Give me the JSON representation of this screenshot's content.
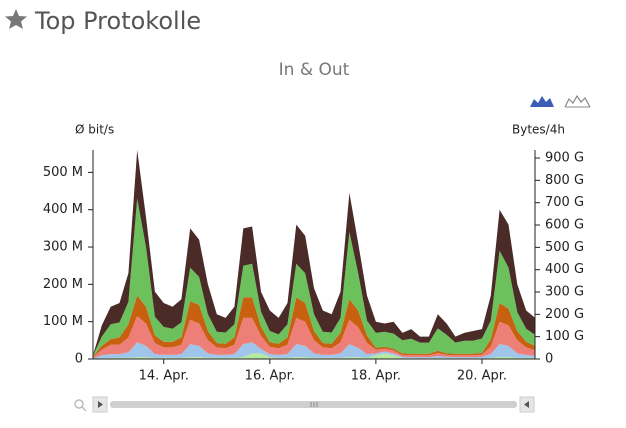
{
  "header": {
    "title": "Top Protokolle"
  },
  "chart_data": {
    "type": "area",
    "stacked": true,
    "title": "In & Out",
    "ylabel": "Ø bit/s",
    "y2label": "Bytes/4h",
    "categories": [
      null,
      null,
      null,
      null,
      null,
      null,
      null,
      null,
      "14. Apr.",
      null,
      null,
      null,
      null,
      null,
      null,
      null,
      null,
      null,
      null,
      null,
      "16. Apr.",
      null,
      null,
      null,
      null,
      null,
      null,
      null,
      null,
      null,
      null,
      null,
      "18. Apr.",
      null,
      null,
      null,
      null,
      null,
      null,
      null,
      null,
      null,
      null,
      null,
      "20. Apr.",
      null,
      null,
      null,
      null,
      null,
      null
    ],
    "ylim": [
      0,
      560
    ],
    "yticks": [
      0,
      {
        "value": 100,
        "label": "100 M"
      },
      {
        "value": 200,
        "label": "200 M"
      },
      {
        "value": 300,
        "label": "300 M"
      },
      {
        "value": 400,
        "label": "400 M"
      },
      {
        "value": 500,
        "label": "500 M"
      }
    ],
    "y2lim": [
      0,
      936
    ],
    "y2ticks": [
      0,
      {
        "value": 100,
        "label": "100 G"
      },
      {
        "value": 200,
        "label": "200 G"
      },
      {
        "value": 300,
        "label": "300 G"
      },
      {
        "value": 400,
        "label": "400 G"
      },
      {
        "value": 500,
        "label": "500 G"
      },
      {
        "value": 600,
        "label": "600 G"
      },
      {
        "value": 700,
        "label": "700 G"
      },
      {
        "value": 800,
        "label": "800 G"
      },
      {
        "value": 900,
        "label": "900 G"
      }
    ],
    "series": [
      {
        "color": "#b6eaa2",
        "values": [
          0,
          2,
          3,
          3,
          3,
          5,
          5,
          3,
          3,
          3,
          3,
          5,
          5,
          3,
          3,
          3,
          3,
          5,
          15,
          15,
          5,
          3,
          3,
          5,
          5,
          3,
          3,
          3,
          3,
          5,
          5,
          3,
          10,
          15,
          10,
          3,
          2,
          2,
          2,
          3,
          2,
          2,
          2,
          2,
          2,
          3,
          5,
          5,
          3,
          3,
          3
        ]
      },
      {
        "color": "#9fc6ea",
        "values": [
          2,
          8,
          10,
          10,
          15,
          40,
          30,
          10,
          8,
          8,
          10,
          35,
          30,
          12,
          8,
          8,
          10,
          35,
          30,
          12,
          8,
          8,
          10,
          35,
          30,
          12,
          8,
          8,
          12,
          35,
          25,
          10,
          5,
          5,
          5,
          3,
          3,
          3,
          3,
          5,
          4,
          3,
          3,
          3,
          4,
          10,
          35,
          30,
          12,
          8,
          5
        ]
      },
      {
        "color": "#ee7f78",
        "values": [
          3,
          15,
          25,
          25,
          40,
          70,
          60,
          30,
          20,
          20,
          25,
          65,
          60,
          35,
          20,
          18,
          25,
          70,
          65,
          35,
          20,
          18,
          25,
          70,
          65,
          35,
          20,
          18,
          30,
          65,
          55,
          30,
          10,
          8,
          8,
          5,
          5,
          5,
          5,
          8,
          5,
          5,
          5,
          5,
          6,
          20,
          60,
          55,
          35,
          20,
          15
        ]
      },
      {
        "color": "#c7600f",
        "values": [
          2,
          10,
          15,
          20,
          35,
          55,
          45,
          20,
          15,
          15,
          20,
          50,
          50,
          25,
          12,
          12,
          20,
          55,
          55,
          25,
          12,
          12,
          20,
          55,
          50,
          25,
          12,
          12,
          25,
          55,
          45,
          20,
          5,
          5,
          5,
          4,
          4,
          4,
          4,
          6,
          4,
          4,
          4,
          4,
          5,
          20,
          50,
          45,
          25,
          15,
          12
        ]
      },
      {
        "color": "#6dc15d",
        "values": [
          2,
          25,
          40,
          40,
          60,
          260,
          160,
          50,
          40,
          35,
          40,
          90,
          75,
          45,
          30,
          30,
          35,
          85,
          90,
          40,
          30,
          25,
          35,
          90,
          80,
          45,
          30,
          30,
          40,
          180,
          100,
          40,
          40,
          40,
          40,
          35,
          40,
          30,
          30,
          60,
          50,
          30,
          35,
          35,
          38,
          50,
          140,
          110,
          50,
          35,
          30
        ]
      },
      {
        "color": "#4a2b27",
        "values": [
          1,
          30,
          47,
          52,
          77,
          130,
          80,
          67,
          64,
          59,
          62,
          105,
          100,
          80,
          47,
          39,
          47,
          100,
          100,
          53,
          55,
          44,
          57,
          105,
          100,
          70,
          57,
          49,
          70,
          105,
          80,
          67,
          30,
          22,
          32,
          20,
          26,
          16,
          16,
          38,
          30,
          16,
          21,
          26,
          25,
          67,
          110,
          115,
          75,
          49,
          45
        ]
      }
    ]
  }
}
